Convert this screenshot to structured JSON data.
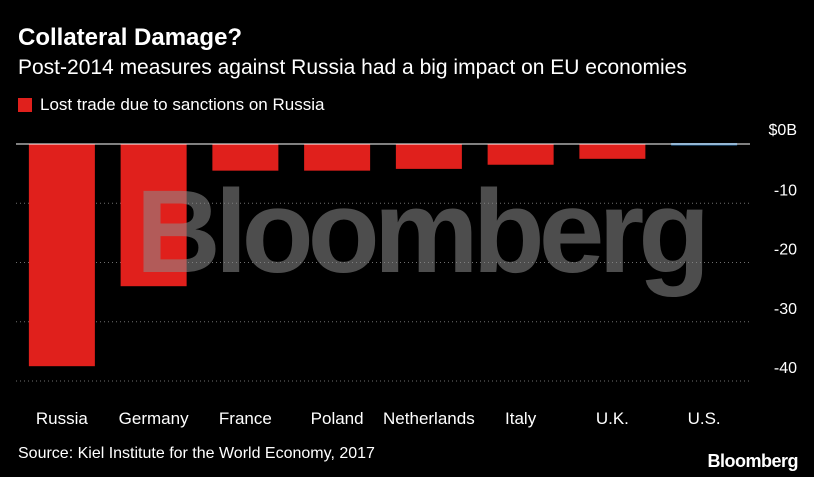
{
  "title": "Collateral Damage?",
  "subtitle": "Post-2014 measures against Russia had a big impact on EU economies",
  "legend": {
    "label": "Lost trade due to sanctions on Russia"
  },
  "source": "Source: Kiel Institute for the World Economy, 2017",
  "brand": "Bloomberg",
  "watermark": "Bloomberg",
  "colors": {
    "bar": "#e0201c",
    "zero_bar": "#2a6ea8",
    "grid": "#6f6f6f",
    "background": "#000000",
    "text": "#ffffff",
    "watermark": "#8c8c8c"
  },
  "chart_data": {
    "type": "bar",
    "categories": [
      "Russia",
      "Germany",
      "France",
      "Poland",
      "Netherlands",
      "Italy",
      "U.K.",
      "U.S."
    ],
    "values": [
      -37.5,
      -24,
      -4.5,
      -4.5,
      -4.2,
      -3.5,
      -2.5,
      0
    ],
    "series_name": "Lost trade due to sanctions on Russia",
    "ylim": [
      -40,
      0
    ],
    "yticks": [
      0,
      -10,
      -20,
      -30,
      -40
    ],
    "ytick_labels": [
      "$0B",
      "-10",
      "-20",
      "-30",
      "-40"
    ],
    "ylabel": "",
    "xlabel": "",
    "grid": true
  }
}
